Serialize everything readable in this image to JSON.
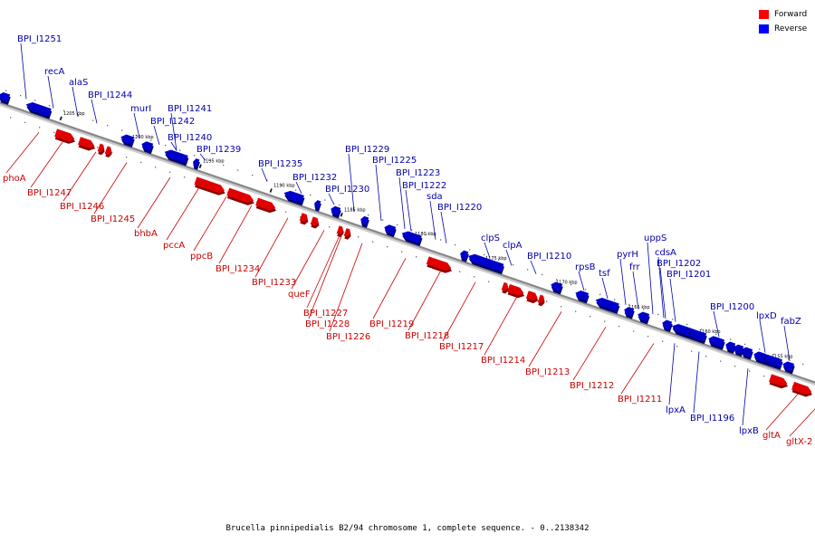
{
  "caption": "Brucella pinnipedialis B2/94 chromosome 1, complete sequence. - 0..2138342",
  "legend": [
    {
      "label": "Forward",
      "color": "#ff0000"
    },
    {
      "label": "Reverse",
      "color": "#0000ff"
    }
  ],
  "colors": {
    "forward": "#e00000",
    "reverse": "#0000cc",
    "forward_label": "#cc0000",
    "reverse_label": "#0000aa",
    "backbone": "#888888"
  },
  "ticks": [
    "1205 kbp",
    "1200 kbp",
    "1195 kbp",
    "1190 kbp",
    "1185 kbp",
    "1180 kbp",
    "1175 kbp",
    "1170 kbp",
    "1165 kbp",
    "1160 kbp",
    "1155 kbp"
  ],
  "genes": [
    {
      "label": "BPI_I1251",
      "strand": "reverse"
    },
    {
      "label": "recA",
      "strand": "reverse"
    },
    {
      "label": "alaS",
      "strand": "reverse"
    },
    {
      "label": "BPI_I1244",
      "strand": "reverse"
    },
    {
      "label": "murI",
      "strand": "reverse"
    },
    {
      "label": "BPI_I1241",
      "strand": "reverse"
    },
    {
      "label": "BPI_I1242",
      "strand": "reverse"
    },
    {
      "label": "BPI_I1240",
      "strand": "reverse"
    },
    {
      "label": "BPI_I1239",
      "strand": "reverse"
    },
    {
      "label": "BPI_I1235",
      "strand": "reverse"
    },
    {
      "label": "BPI_I1232",
      "strand": "reverse"
    },
    {
      "label": "BPI_I1230",
      "strand": "reverse"
    },
    {
      "label": "BPI_I1229",
      "strand": "reverse"
    },
    {
      "label": "BPI_I1225",
      "strand": "reverse"
    },
    {
      "label": "BPI_I1223",
      "strand": "reverse"
    },
    {
      "label": "BPI_I1222",
      "strand": "reverse"
    },
    {
      "label": "sda",
      "strand": "reverse"
    },
    {
      "label": "BPI_I1220",
      "strand": "reverse"
    },
    {
      "label": "clpS",
      "strand": "reverse"
    },
    {
      "label": "clpA",
      "strand": "reverse"
    },
    {
      "label": "BPI_I1210",
      "strand": "reverse"
    },
    {
      "label": "rpsB",
      "strand": "reverse"
    },
    {
      "label": "tsf",
      "strand": "reverse"
    },
    {
      "label": "pyrH",
      "strand": "reverse"
    },
    {
      "label": "frr",
      "strand": "reverse"
    },
    {
      "label": "uppS",
      "strand": "reverse"
    },
    {
      "label": "cdsA",
      "strand": "reverse"
    },
    {
      "label": "BPI_I1202",
      "strand": "reverse"
    },
    {
      "label": "BPI_I1201",
      "strand": "reverse"
    },
    {
      "label": "BPI_I1200",
      "strand": "reverse"
    },
    {
      "label": "lpxD",
      "strand": "reverse"
    },
    {
      "label": "fabZ",
      "strand": "reverse"
    },
    {
      "label": "lpxA",
      "strand": "reverse"
    },
    {
      "label": "BPI_I1196",
      "strand": "reverse"
    },
    {
      "label": "lpxB",
      "strand": "reverse"
    },
    {
      "label": "phoA",
      "strand": "forward"
    },
    {
      "label": "BPI_I1247",
      "strand": "forward"
    },
    {
      "label": "BPI_I1246",
      "strand": "forward"
    },
    {
      "label": "BPI_I1245",
      "strand": "forward"
    },
    {
      "label": "bhbA",
      "strand": "forward"
    },
    {
      "label": "pccA",
      "strand": "forward"
    },
    {
      "label": "ppcB",
      "strand": "forward"
    },
    {
      "label": "BPI_I1234",
      "strand": "forward"
    },
    {
      "label": "BPI_I1233",
      "strand": "forward"
    },
    {
      "label": "queF",
      "strand": "forward"
    },
    {
      "label": "BPI_I1227",
      "strand": "forward"
    },
    {
      "label": "BPI_I1228",
      "strand": "forward"
    },
    {
      "label": "BPI_I1226",
      "strand": "forward"
    },
    {
      "label": "BPI_I1219",
      "strand": "forward"
    },
    {
      "label": "BPI_I1218",
      "strand": "forward"
    },
    {
      "label": "BPI_I1217",
      "strand": "forward"
    },
    {
      "label": "BPI_I1214",
      "strand": "forward"
    },
    {
      "label": "BPI_I1213",
      "strand": "forward"
    },
    {
      "label": "BPI_I1212",
      "strand": "forward"
    },
    {
      "label": "BPI_I1211",
      "strand": "forward"
    },
    {
      "label": "gltA",
      "strand": "forward"
    },
    {
      "label": "gltX-2",
      "strand": "forward"
    }
  ]
}
